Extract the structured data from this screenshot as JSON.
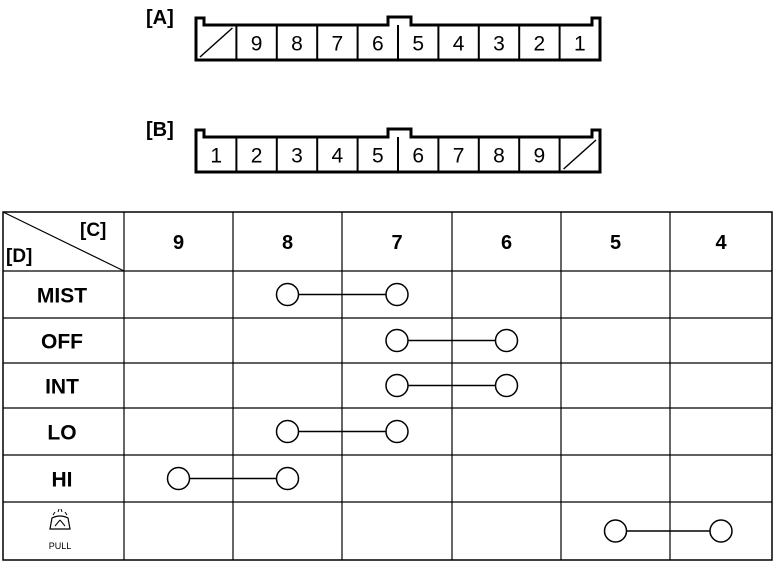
{
  "connectors": [
    {
      "label": "[A]",
      "cells": [
        "",
        "9",
        "8",
        "7",
        "6",
        "5",
        "4",
        "3",
        "2",
        "1"
      ],
      "blank_first": true
    },
    {
      "label": "[B]",
      "cells": [
        "1",
        "2",
        "3",
        "4",
        "5",
        "6",
        "7",
        "8",
        "9",
        ""
      ],
      "blank_last": true
    }
  ],
  "table": {
    "corner_top": "[C]",
    "corner_bottom": "[D]",
    "columns": [
      "9",
      "8",
      "7",
      "6",
      "5",
      "4"
    ],
    "rows": [
      {
        "label": "MIST",
        "connects": [
          "8",
          "7"
        ]
      },
      {
        "label": "OFF",
        "connects": [
          "7",
          "6"
        ]
      },
      {
        "label": "INT",
        "connects": [
          "7",
          "6"
        ]
      },
      {
        "label": "LO",
        "connects": [
          "8",
          "7"
        ]
      },
      {
        "label": "HI",
        "connects": [
          "9",
          "8"
        ]
      },
      {
        "label": "",
        "icon": "washer-pull-icon",
        "icon_text": "PULL",
        "connects": [
          "5",
          "4"
        ]
      }
    ]
  }
}
